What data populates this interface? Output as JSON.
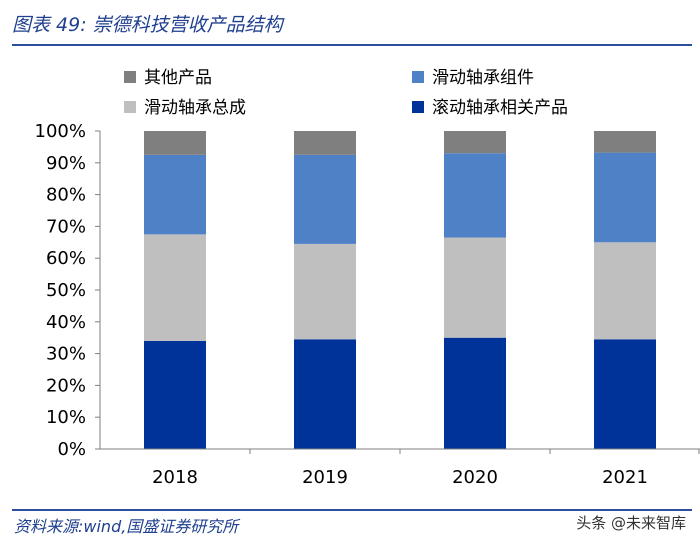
{
  "header": {
    "title": "图表 49:  崇德科技营收产品结构"
  },
  "footer": {
    "source": "资料来源:wind,国盛证券研究所",
    "watermark": "头条 @未来智库"
  },
  "chart_data": {
    "type": "bar",
    "stacked": true,
    "categories": [
      "2018",
      "2019",
      "2020",
      "2021"
    ],
    "series": [
      {
        "name": "滚动轴承相关产品",
        "color": "#003399",
        "values": [
          34,
          34.5,
          35,
          34.5
        ]
      },
      {
        "name": "滑动轴承总成",
        "color": "#bfbfbf",
        "values": [
          33.5,
          30,
          31.5,
          30.5
        ]
      },
      {
        "name": "滑动轴承组件",
        "color": "#4f81c7",
        "values": [
          25,
          28,
          26.5,
          28.2
        ]
      },
      {
        "name": "其他产品",
        "color": "#7f7f7f",
        "values": [
          7.5,
          7.5,
          7,
          6.8
        ]
      }
    ],
    "yticks": [
      "0%",
      "10%",
      "20%",
      "30%",
      "40%",
      "50%",
      "60%",
      "70%",
      "80%",
      "90%",
      "100%"
    ],
    "ylim": [
      0,
      100
    ],
    "legend": {
      "position": "top",
      "order": [
        "其他产品",
        "滑动轴承组件",
        "滑动轴承总成",
        "滚动轴承相关产品"
      ]
    }
  }
}
